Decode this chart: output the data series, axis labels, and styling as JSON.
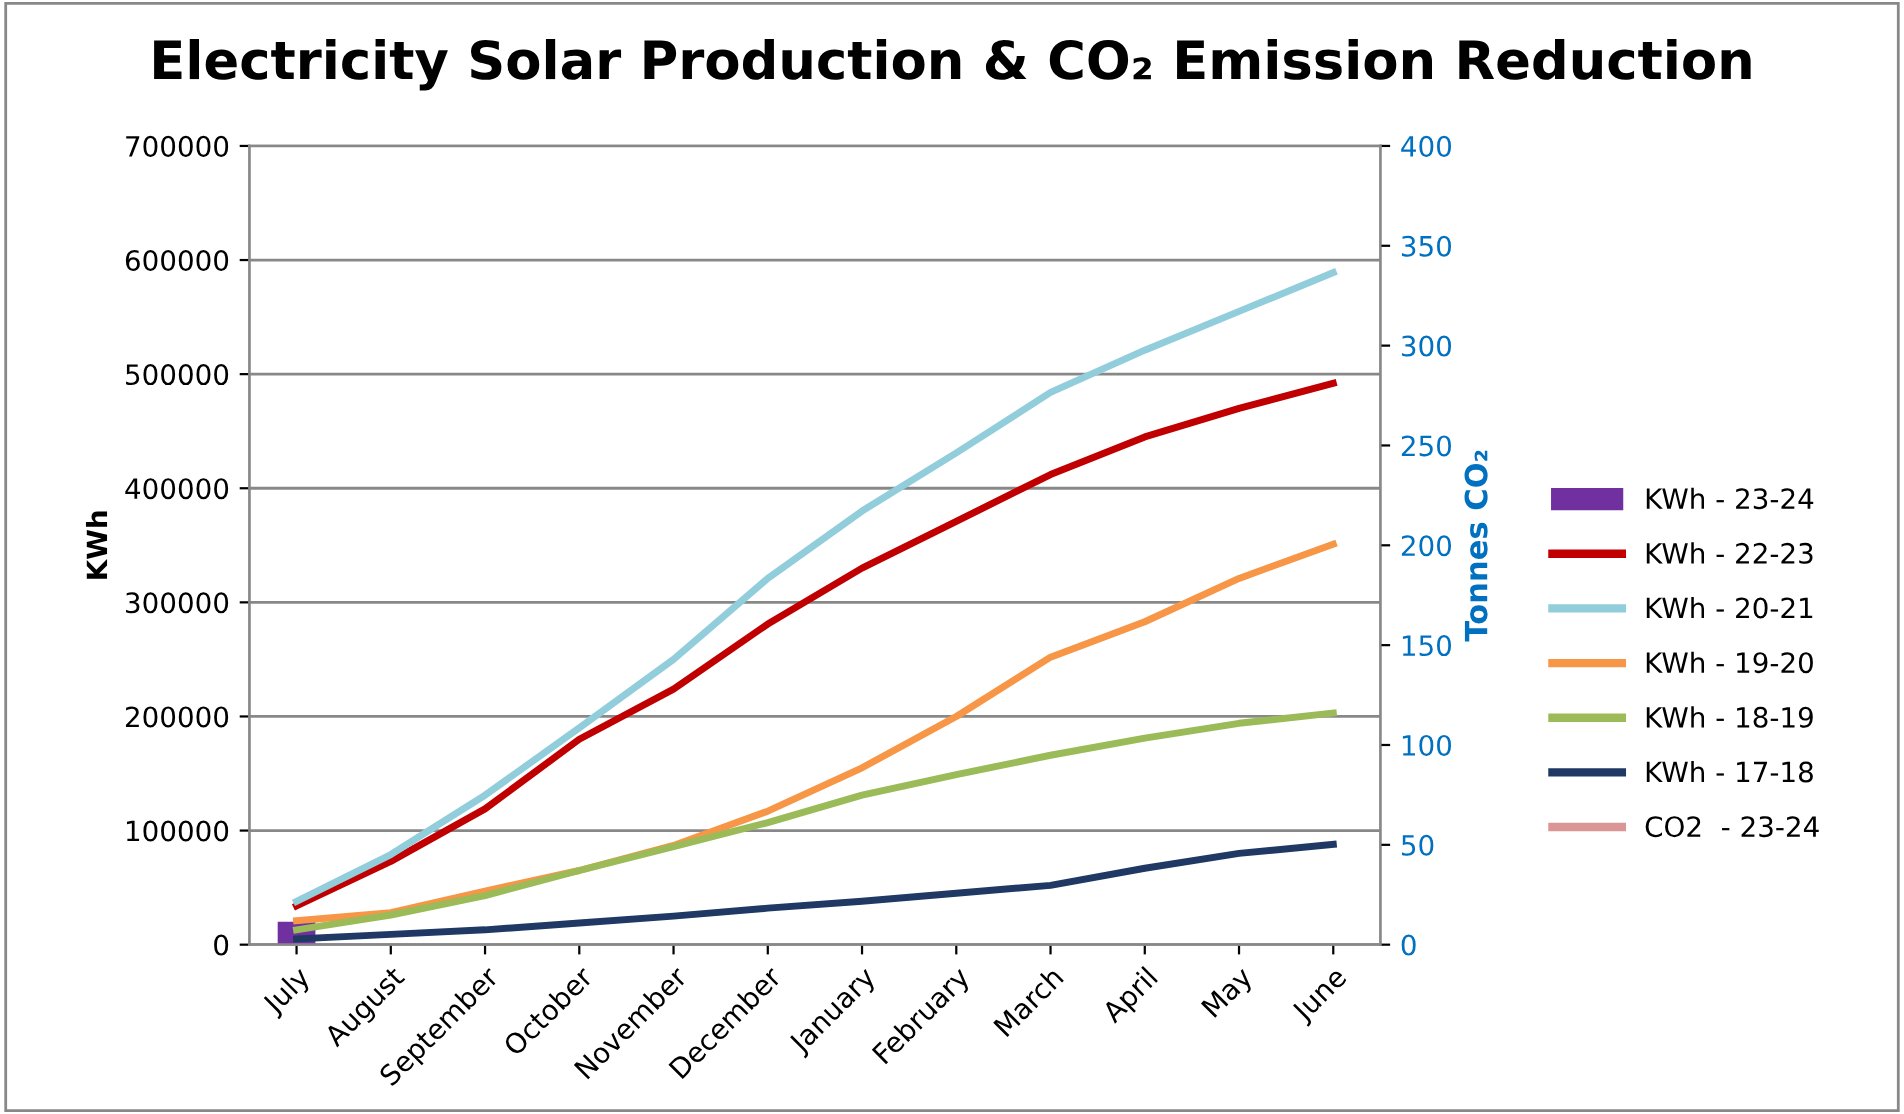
{
  "chart_data": {
    "type": "line",
    "title": "Electricity Solar Production & CO₂ Emission Reduction",
    "ylabel": "KWh",
    "y2label": "Tonnes CO₂",
    "categories": [
      "July",
      "August",
      "September",
      "October",
      "November",
      "December",
      "January",
      "February",
      "March",
      "April",
      "May",
      "June"
    ],
    "series": [
      {
        "name": "KWh - 23-24",
        "type": "bar",
        "color": "#7030a0",
        "values": [
          20000,
          null,
          null,
          null,
          null,
          null,
          null,
          null,
          null,
          null,
          null,
          null
        ]
      },
      {
        "name": "KWh - 22-23",
        "color": "#c00000",
        "values": [
          34000,
          73000,
          119000,
          180000,
          224000,
          281000,
          330000,
          371000,
          412000,
          445000,
          470000,
          492000
        ]
      },
      {
        "name": "KWh - 20-21",
        "color": "#92cddc",
        "values": [
          38000,
          79000,
          131000,
          190000,
          250000,
          321000,
          380000,
          431000,
          484000,
          521000,
          555000,
          589000
        ]
      },
      {
        "name": "KWh - 19-20",
        "color": "#f79646",
        "values": [
          21000,
          28000,
          47000,
          65000,
          87000,
          117000,
          155000,
          200000,
          252000,
          283000,
          321000,
          351000
        ]
      },
      {
        "name": "KWh - 18-19",
        "color": "#9bbb59",
        "values": [
          13000,
          26000,
          43000,
          65000,
          86000,
          107000,
          131000,
          149000,
          166000,
          181000,
          194000,
          203000
        ]
      },
      {
        "name": "KWh - 17-18",
        "color": "#1f3864",
        "values": [
          5000,
          9000,
          13000,
          19000,
          25000,
          32000,
          38000,
          45000,
          52000,
          67000,
          80000,
          88000
        ]
      },
      {
        "name": "CO2  - 23-24",
        "color": "#d99694",
        "values": [
          null,
          null,
          null,
          null,
          null,
          null,
          null,
          null,
          null,
          null,
          null,
          null
        ]
      }
    ],
    "ylim": [
      0,
      700000
    ],
    "yticks": [
      0,
      100000,
      200000,
      300000,
      400000,
      500000,
      600000,
      700000
    ],
    "y2lim": [
      0,
      400
    ],
    "y2ticks": [
      0,
      50,
      100,
      150,
      200,
      250,
      300,
      350,
      400
    ],
    "grid": "y",
    "legend": "right",
    "marker": "none",
    "line_style": "solid"
  }
}
